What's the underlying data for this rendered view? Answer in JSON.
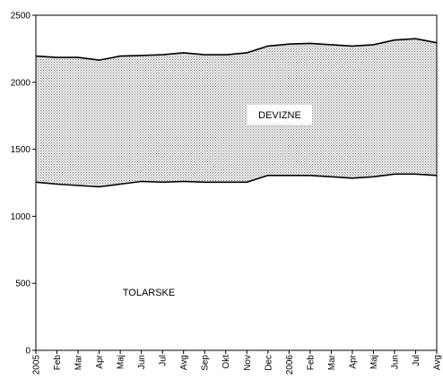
{
  "chart_data": {
    "type": "area",
    "stacked": true,
    "categories": [
      "2005",
      "Feb",
      "Mar",
      "Apr",
      "Maj",
      "Jun",
      "Jul",
      "Avg",
      "Sep",
      "Okt",
      "Nov",
      "Dec",
      "2006",
      "Feb",
      "Mar",
      "Apr",
      "Maj",
      "Jun",
      "Jul",
      "Avg"
    ],
    "series": [
      {
        "name": "TOLARSKE",
        "values": [
          1255,
          1240,
          1230,
          1220,
          1240,
          1260,
          1255,
          1260,
          1255,
          1255,
          1255,
          1305,
          1305,
          1305,
          1295,
          1285,
          1295,
          1315,
          1315,
          1305
        ],
        "color": "#ffffff"
      },
      {
        "name": "DEVIZNE",
        "values": [
          940,
          945,
          955,
          945,
          955,
          940,
          950,
          960,
          950,
          950,
          965,
          965,
          980,
          985,
          985,
          985,
          985,
          1000,
          1010,
          990
        ],
        "color": "#c0c0c0"
      }
    ],
    "title": "",
    "xlabel": "",
    "ylabel": "",
    "ylim": [
      0,
      2500
    ],
    "yticks": [
      "0",
      "500",
      "1000",
      "1500",
      "2000",
      "2500"
    ],
    "grid": false,
    "legend": "none"
  }
}
